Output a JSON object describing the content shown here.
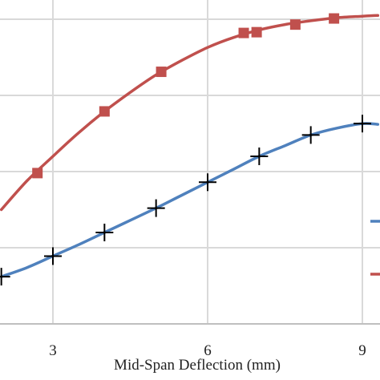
{
  "chart_data": {
    "type": "line",
    "title": "",
    "xlabel": "Mid-Span Deflection (mm)",
    "ylabel": "",
    "xlim": [
      2.0,
      9.3
    ],
    "ylim": [
      0,
      5
    ],
    "x_ticks": [
      3,
      6,
      9
    ],
    "x_tick_labels": [
      "3",
      "6",
      "9"
    ],
    "y_gridlines": [
      1,
      2,
      3,
      4,
      5
    ],
    "grid": true,
    "legend": "right, partially cropped (line samples only)",
    "series": [
      {
        "color": "#c0504d",
        "marker": "square",
        "line_x": [
          2.0,
          2.5,
          3.0,
          3.5,
          4.0,
          4.5,
          5.0,
          5.5,
          6.0,
          6.5,
          7.0,
          7.5,
          8.0,
          8.5,
          9.0,
          9.3
        ],
        "line_y": [
          1.5,
          1.88,
          2.2,
          2.51,
          2.79,
          3.04,
          3.27,
          3.46,
          3.63,
          3.76,
          3.86,
          3.93,
          3.98,
          4.02,
          4.04,
          4.05
        ],
        "marker_x": [
          2.7,
          4.0,
          5.1,
          6.7,
          6.95,
          7.7,
          8.45
        ],
        "marker_y": [
          1.98,
          2.79,
          3.31,
          3.82,
          3.83,
          3.93,
          4.01
        ]
      },
      {
        "color": "#4f81bd",
        "marker": "plus",
        "line_x": [
          2.0,
          2.5,
          3.0,
          3.5,
          4.0,
          4.5,
          5.0,
          5.5,
          6.0,
          6.5,
          7.0,
          7.5,
          8.0,
          8.5,
          9.0,
          9.3
        ],
        "line_y": [
          0.62,
          0.74,
          0.89,
          1.04,
          1.2,
          1.36,
          1.52,
          1.69,
          1.86,
          2.03,
          2.2,
          2.34,
          2.48,
          2.57,
          2.63,
          2.62
        ],
        "marker_x": [
          2.0,
          3.0,
          4.0,
          5.0,
          6.0,
          7.0,
          8.0,
          9.0
        ],
        "marker_y": [
          0.62,
          0.89,
          1.2,
          1.52,
          1.86,
          2.2,
          2.48,
          2.63
        ]
      }
    ]
  }
}
